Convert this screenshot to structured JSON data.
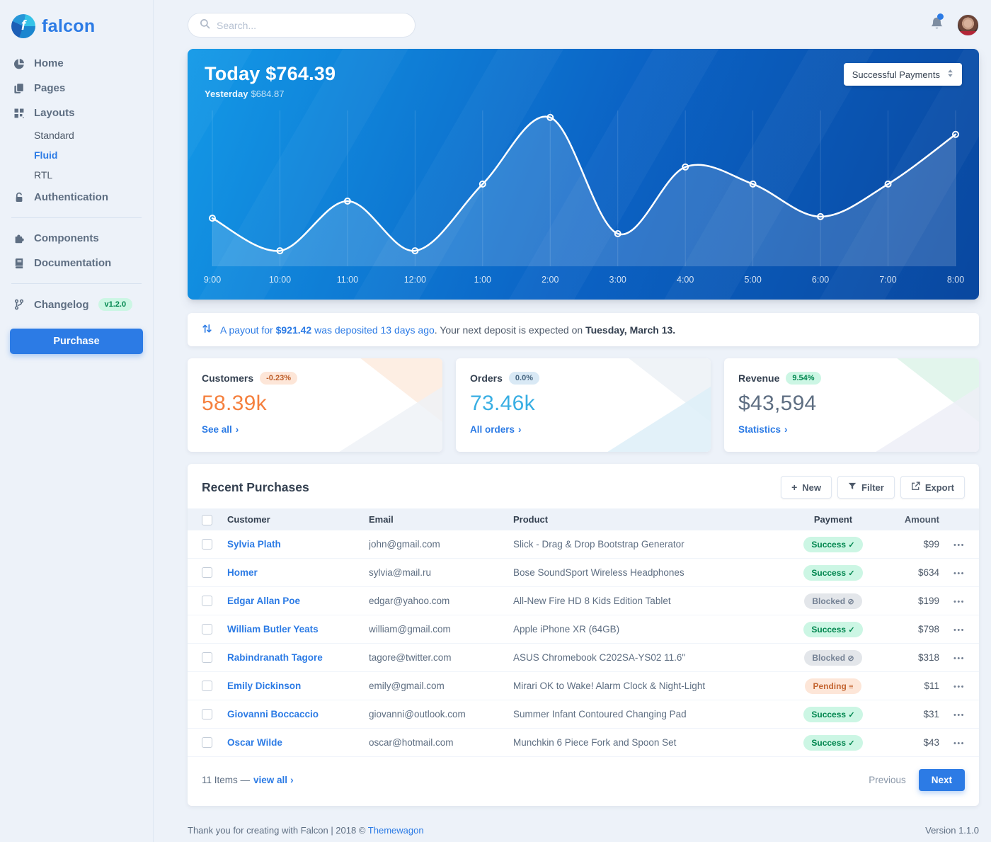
{
  "brand": {
    "name": "falcon"
  },
  "topbar": {
    "search_placeholder": "Search..."
  },
  "sidebar": {
    "items": {
      "home": "Home",
      "pages": "Pages",
      "layouts": "Layouts",
      "authentication": "Authentication",
      "components": "Components",
      "documentation": "Documentation",
      "changelog": "Changelog"
    },
    "layouts_children": [
      "Standard",
      "Fluid",
      "RTL"
    ],
    "active_layout": "Fluid",
    "changelog_badge": "v1.2.0",
    "purchase_label": "Purchase"
  },
  "chart_card": {
    "today_label": "Today",
    "today_value": "$764.39",
    "yesterday_label": "Yesterday",
    "yesterday_value": "$684.87",
    "dropdown_value": "Successful Payments"
  },
  "chart_data": {
    "type": "line",
    "title": "Successful Payments — Today $764.39",
    "x": [
      "9:00",
      "10:00",
      "11:00",
      "12:00",
      "1:00",
      "2:00",
      "3:00",
      "4:00",
      "5:00",
      "6:00",
      "7:00",
      "8:00"
    ],
    "series": [
      {
        "name": "Successful Payments",
        "values": [
          31,
          10,
          42,
          10,
          53,
          96,
          21,
          64,
          53,
          32,
          53,
          85
        ]
      }
    ],
    "ylim": [
      0,
      100
    ],
    "grid": "vertical-only",
    "legend": "none",
    "colors": {
      "line": "#ffffff",
      "area": "rgba(255,255,255,0.16)",
      "background": [
        "#1399e7",
        "#09479f"
      ]
    }
  },
  "payout_banner": {
    "blue_pre": "A payout for ",
    "amount": "$921.42",
    "blue_post": " was deposited 13 days ago",
    "dark_pre": ". Your next deposit is expected on ",
    "date": "Tuesday, March 13."
  },
  "stats": [
    {
      "title": "Customers",
      "badge": "-0.23%",
      "value": "58.39k",
      "link": "See all"
    },
    {
      "title": "Orders",
      "badge": "0.0%",
      "value": "73.46k",
      "link": "All orders"
    },
    {
      "title": "Revenue",
      "badge": "9.54%",
      "value": "$43,594",
      "link": "Statistics"
    }
  ],
  "purchases": {
    "title": "Recent Purchases",
    "buttons": {
      "new": "New",
      "filter": "Filter",
      "export": "Export"
    },
    "columns": [
      "Customer",
      "Email",
      "Product",
      "Payment",
      "Amount"
    ],
    "rows": [
      {
        "customer": "Sylvia Plath",
        "email": "john@gmail.com",
        "product": "Slick - Drag & Drop Bootstrap Generator",
        "payment": "Success",
        "payment_type": "success",
        "amount": "$99"
      },
      {
        "customer": "Homer",
        "email": "sylvia@mail.ru",
        "product": "Bose SoundSport Wireless Headphones",
        "payment": "Success",
        "payment_type": "success",
        "amount": "$634"
      },
      {
        "customer": "Edgar Allan Poe",
        "email": "edgar@yahoo.com",
        "product": "All-New Fire HD 8 Kids Edition Tablet",
        "payment": "Blocked",
        "payment_type": "blocked",
        "amount": "$199"
      },
      {
        "customer": "William Butler Yeats",
        "email": "william@gmail.com",
        "product": "Apple iPhone XR (64GB)",
        "payment": "Success",
        "payment_type": "success",
        "amount": "$798"
      },
      {
        "customer": "Rabindranath Tagore",
        "email": "tagore@twitter.com",
        "product": "ASUS Chromebook C202SA-YS02 11.6\"",
        "payment": "Blocked",
        "payment_type": "blocked",
        "amount": "$318"
      },
      {
        "customer": "Emily Dickinson",
        "email": "emily@gmail.com",
        "product": "Mirari OK to Wake! Alarm Clock & Night-Light",
        "payment": "Pending",
        "payment_type": "pending",
        "amount": "$11"
      },
      {
        "customer": "Giovanni Boccaccio",
        "email": "giovanni@outlook.com",
        "product": "Summer Infant Contoured Changing Pad",
        "payment": "Success",
        "payment_type": "success",
        "amount": "$31"
      },
      {
        "customer": "Oscar Wilde",
        "email": "oscar@hotmail.com",
        "product": "Munchkin 6 Piece Fork and Spoon Set",
        "payment": "Success",
        "payment_type": "success",
        "amount": "$43"
      }
    ],
    "footer": {
      "items_text": "11 Items —",
      "view_all": "view all",
      "previous": "Previous",
      "next": "Next"
    }
  },
  "page_footer": {
    "thanks": "Thank you for creating with Falcon | 2018 © ",
    "brand_link": "Themewagon",
    "version": "Version 1.1.0"
  },
  "icons": {
    "payment_success": "✓",
    "payment_blocked": "⊘",
    "payment_pending": "≡",
    "search": "magnifier",
    "bell": "notification-bell",
    "dropdown": "up-down-sort-arrows",
    "payout": "transfer-arrows",
    "new": "plus",
    "filter": "funnel",
    "export": "external-arrow",
    "row_actions": "three-dots"
  },
  "colors": {
    "primary": "#2c7be5",
    "success": "#00864e",
    "warning": "#f5803e",
    "info": "#27bcfd",
    "body_bg": "#edf2f9"
  }
}
